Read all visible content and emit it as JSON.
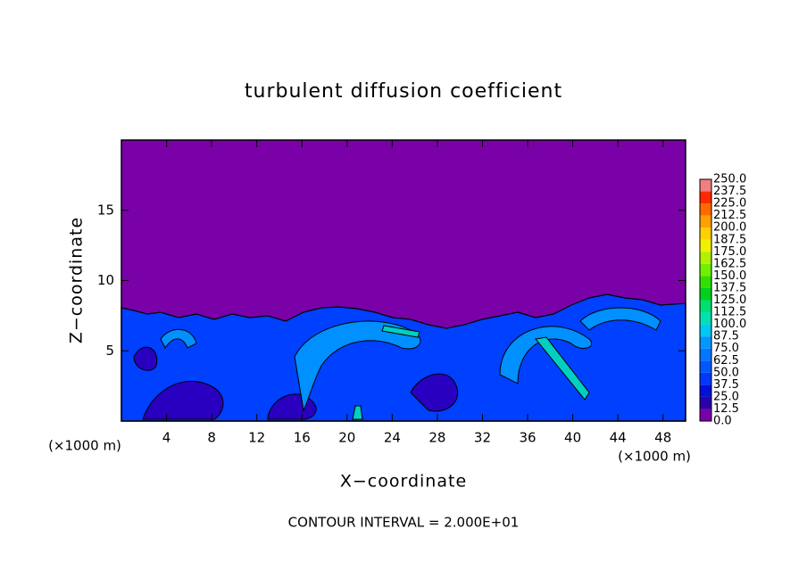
{
  "chart_data": {
    "type": "contour",
    "title": "turbulent diffusion coefficient",
    "xlabel": "X−coordinate",
    "ylabel": "Z−coordinate",
    "x_unit": "(×1000 m)",
    "y_unit": "(×1000 m)",
    "footnote": "CONTOUR INTERVAL = 2.000E+01",
    "xlim": [
      0,
      50
    ],
    "xticks": [
      4,
      8,
      12,
      16,
      20,
      24,
      28,
      32,
      36,
      40,
      44,
      48
    ],
    "ylim": [
      0,
      20
    ],
    "yticks": [
      5,
      10,
      15
    ],
    "colorbar": {
      "levels": [
        {
          "value": 0,
          "label": "0.0"
        },
        12.5,
        {
          "value": 25,
          "label": "25.0"
        },
        37.5,
        {
          "value": 50,
          "label": "50.0"
        },
        62.5,
        {
          "value": 75,
          "label": "75.0"
        },
        87.5,
        {
          "value": 100,
          "label": "100.0"
        },
        112.5,
        {
          "value": 125,
          "label": "125.0"
        },
        137.5,
        {
          "value": 150,
          "label": "150.0"
        },
        162.5,
        {
          "value": 175,
          "label": "175.0"
        },
        187.5,
        {
          "value": 200,
          "label": "200.0"
        },
        212.5,
        {
          "value": 225,
          "label": "225.0"
        },
        237.5,
        {
          "value": 250,
          "label": "250.0"
        }
      ],
      "colors": [
        "#7a00a8",
        "#2a00a8",
        "#0010d8",
        "#0038ff",
        "#0058ff",
        "#0078ff",
        "#0098ff",
        "#00c8f0",
        "#00e0b0",
        "#00e070",
        "#00d020",
        "#30e000",
        "#70f000",
        "#b0f000",
        "#f0f000",
        "#ffd000",
        "#ffa000",
        "#ff6a00",
        "#ff2a00",
        "#f08080"
      ]
    }
  }
}
